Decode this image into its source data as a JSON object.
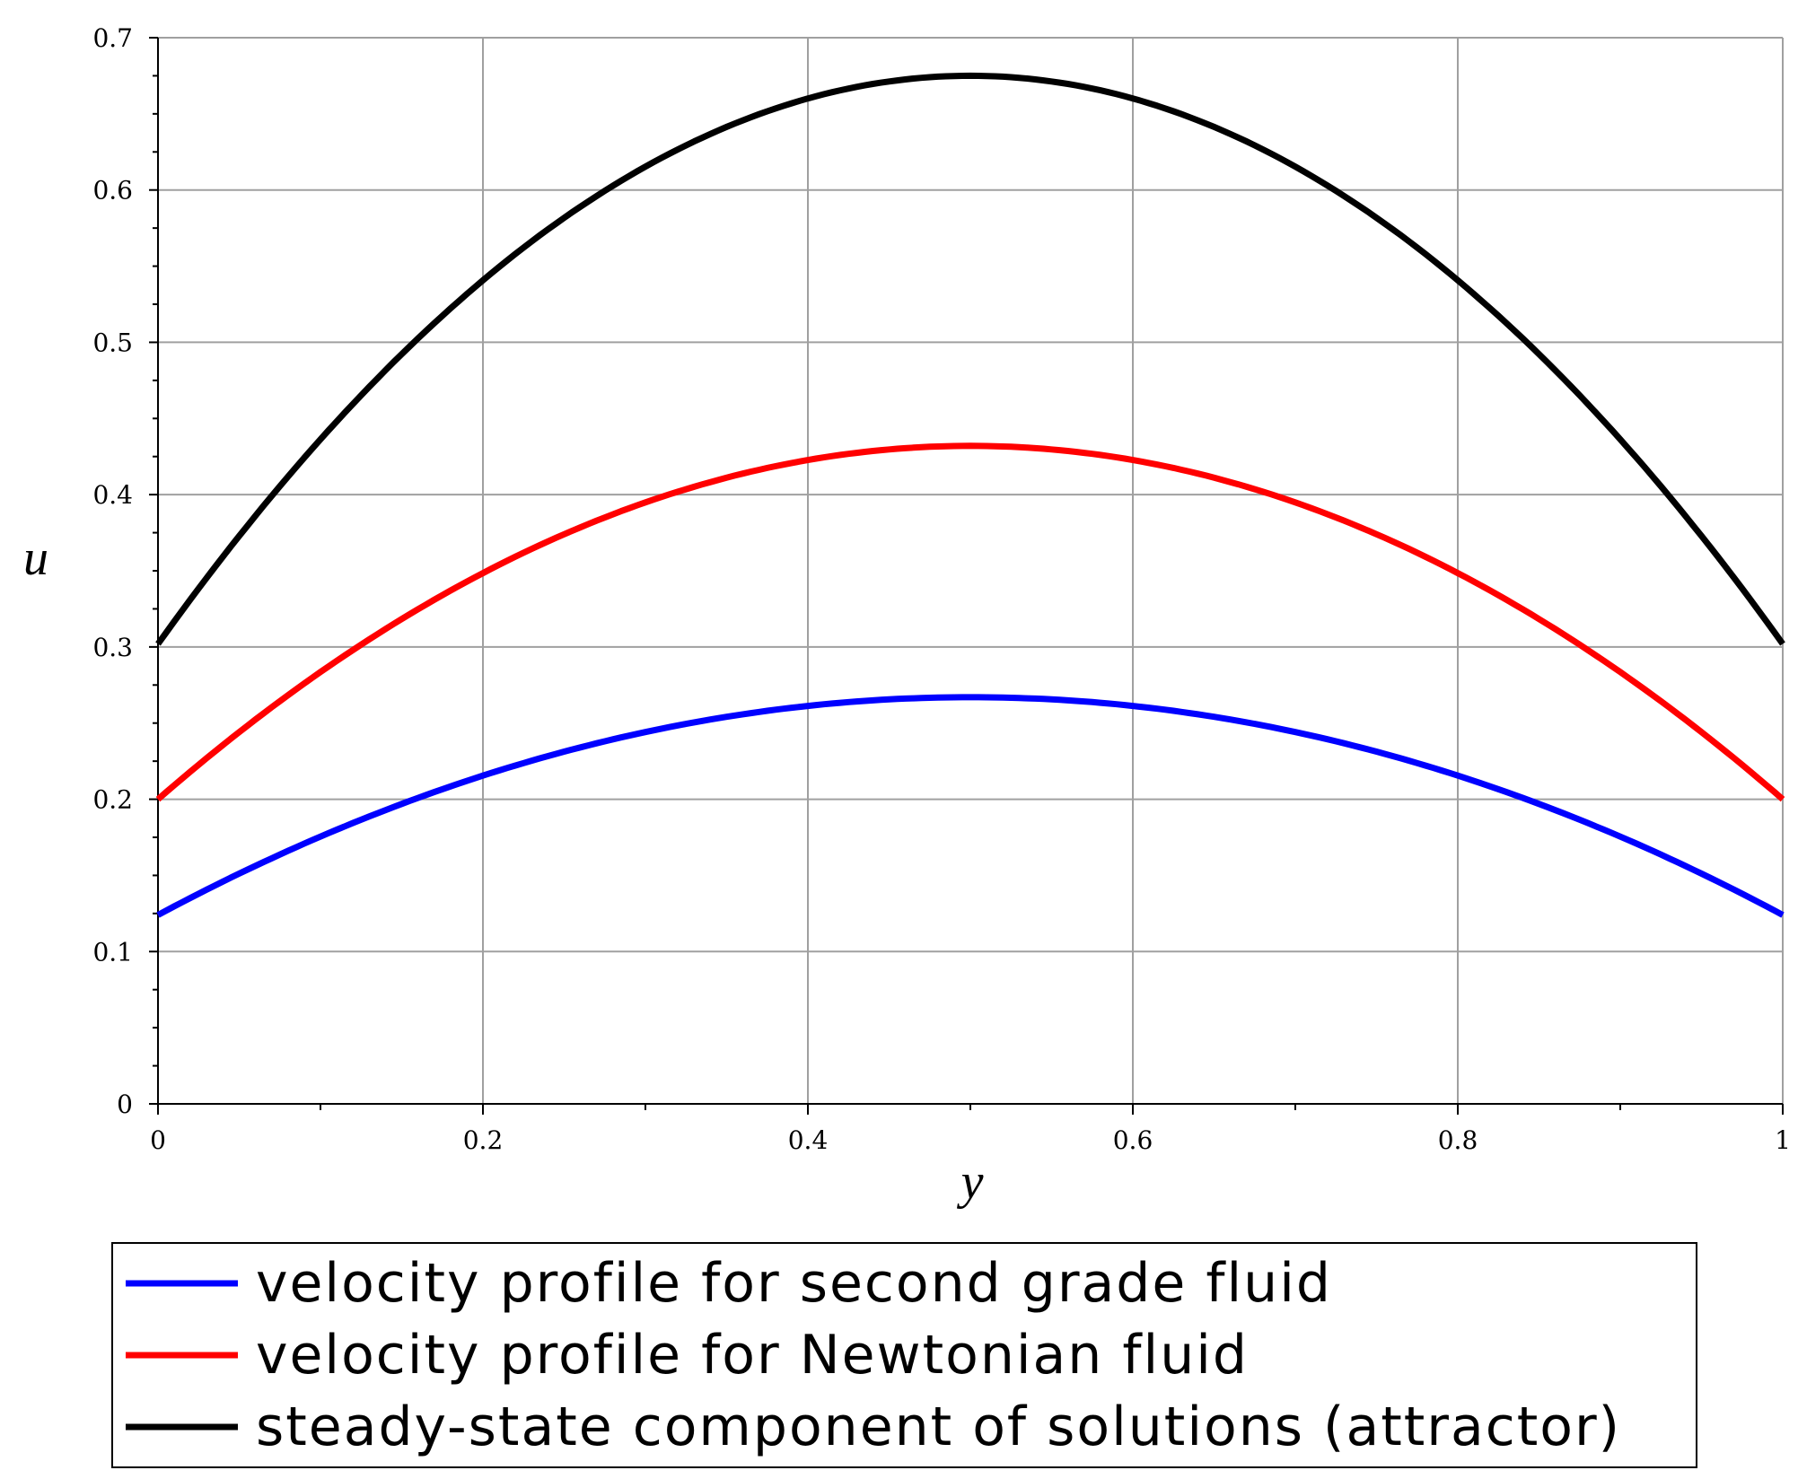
{
  "chart_data": {
    "type": "line",
    "title": "",
    "xlabel": "y",
    "ylabel": "u",
    "xlim": [
      0,
      1
    ],
    "ylim": [
      0,
      0.7
    ],
    "grid": true,
    "x_ticks": [
      "0",
      "0.2",
      "0.4",
      "0.6",
      "0.8",
      "1"
    ],
    "y_ticks": [
      "0",
      "0.1",
      "0.2",
      "0.3",
      "0.4",
      "0.5",
      "0.6",
      "0.7"
    ],
    "legend_position": "bottom",
    "x": [
      0,
      0.1,
      0.2,
      0.3,
      0.4,
      0.5,
      0.6,
      0.7,
      0.8,
      0.9,
      1.0
    ],
    "series": [
      {
        "name": "velocity profile for second grade fluid",
        "color": "#0000ff",
        "values": [
          0.124,
          0.181,
          0.22,
          0.246,
          0.262,
          0.267,
          0.262,
          0.246,
          0.22,
          0.181,
          0.124
        ]
      },
      {
        "name": "velocity profile for Newtonian fluid",
        "color": "#ff0000",
        "values": [
          0.2,
          0.29,
          0.356,
          0.401,
          0.424,
          0.432,
          0.424,
          0.401,
          0.356,
          0.29,
          0.2
        ]
      },
      {
        "name": "steady-state component of solutions (attractor)",
        "color": "#000000",
        "values": [
          0.302,
          0.457,
          0.548,
          0.615,
          0.66,
          0.675,
          0.66,
          0.615,
          0.548,
          0.457,
          0.302
        ]
      }
    ]
  }
}
